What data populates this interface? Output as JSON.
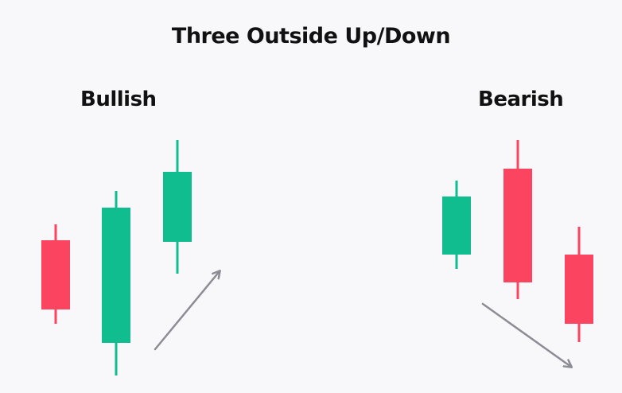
{
  "title": "Three Outside Up/Down",
  "colors": {
    "bullish": "#10bd8e",
    "bearish": "#fb4560",
    "arrow": "#8c8c95",
    "background": "#f8f8fa"
  },
  "panels": [
    {
      "label": "Bullish",
      "trend": "up-arrow",
      "candles": [
        {
          "color": "bearish"
        },
        {
          "color": "bullish"
        },
        {
          "color": "bullish"
        }
      ]
    },
    {
      "label": "Bearish",
      "trend": "down-arrow",
      "candles": [
        {
          "color": "bullish"
        },
        {
          "color": "bearish"
        },
        {
          "color": "bearish"
        }
      ]
    }
  ]
}
